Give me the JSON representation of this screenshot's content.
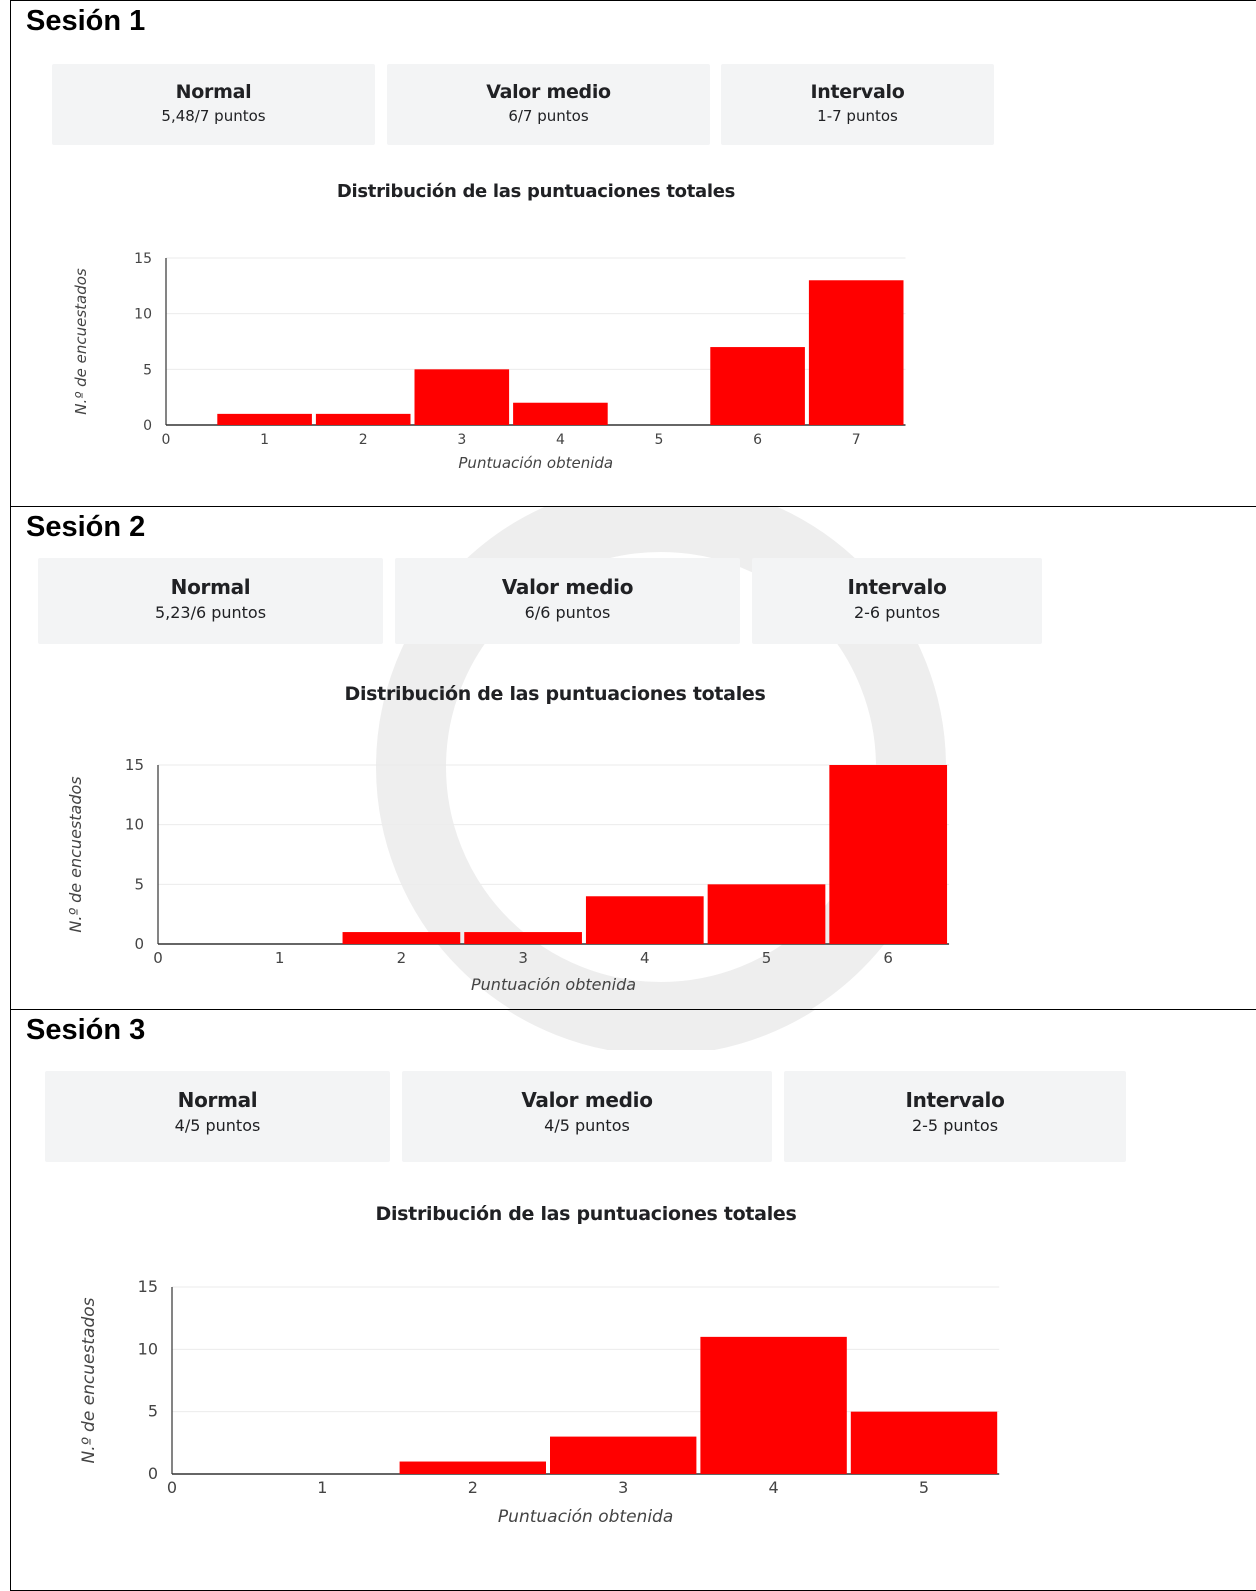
{
  "sessions": [
    {
      "title": "Sesión 1",
      "cards": [
        {
          "label": "Normal",
          "value": "5,48/7 puntos"
        },
        {
          "label": "Valor medio",
          "value": "6/7 puntos"
        },
        {
          "label": "Intervalo",
          "value": "1-7 puntos"
        }
      ],
      "chart_title": "Distribución de las puntuaciones totales"
    },
    {
      "title": "Sesión 2",
      "cards": [
        {
          "label": "Normal",
          "value": "5,23/6 puntos"
        },
        {
          "label": "Valor medio",
          "value": "6/6 puntos"
        },
        {
          "label": "Intervalo",
          "value": "2-6 puntos"
        }
      ],
      "chart_title": "Distribución de las puntuaciones totales"
    },
    {
      "title": "Sesión 3",
      "cards": [
        {
          "label": "Normal",
          "value": "4/5 puntos"
        },
        {
          "label": "Valor medio",
          "value": "4/5 puntos"
        },
        {
          "label": "Intervalo",
          "value": "2-5 puntos"
        }
      ],
      "chart_title": "Distribución de las puntuaciones totales"
    }
  ],
  "colors": {
    "bar": "#ff0000",
    "axis": "#333333",
    "grid": "#ebebeb",
    "card_bg": "#f3f4f5"
  },
  "chart_data": [
    {
      "type": "bar",
      "title": "Distribución de las puntuaciones totales",
      "xlabel": "Puntuación obtenida",
      "ylabel": "N.º de encuestados",
      "x_ticks": [
        0,
        1,
        2,
        3,
        4,
        5,
        6,
        7
      ],
      "categories": [
        1,
        2,
        3,
        4,
        5,
        6,
        7
      ],
      "values": [
        1,
        1,
        5,
        2,
        0,
        7,
        13
      ],
      "ylim": [
        0,
        15
      ],
      "y_ticks": [
        0,
        5,
        10,
        15
      ],
      "grid": true
    },
    {
      "type": "bar",
      "title": "Distribución de las puntuaciones totales",
      "xlabel": "Puntuación obtenida",
      "ylabel": "N.º de encuestados",
      "x_ticks": [
        0,
        1,
        2,
        3,
        4,
        5,
        6
      ],
      "categories": [
        1,
        2,
        3,
        4,
        5,
        6
      ],
      "values": [
        0,
        1,
        1,
        4,
        5,
        15
      ],
      "ylim": [
        0,
        15
      ],
      "y_ticks": [
        0,
        5,
        10,
        15
      ],
      "grid": true
    },
    {
      "type": "bar",
      "title": "Distribución de las puntuaciones totales",
      "xlabel": "Puntuación obtenida",
      "ylabel": "N.º de encuestados",
      "x_ticks": [
        0,
        1,
        2,
        3,
        4,
        5
      ],
      "categories": [
        1,
        2,
        3,
        4,
        5
      ],
      "values": [
        0,
        1,
        3,
        11,
        5
      ],
      "ylim": [
        0,
        15
      ],
      "y_ticks": [
        0,
        5,
        10,
        15
      ],
      "grid": true
    }
  ]
}
